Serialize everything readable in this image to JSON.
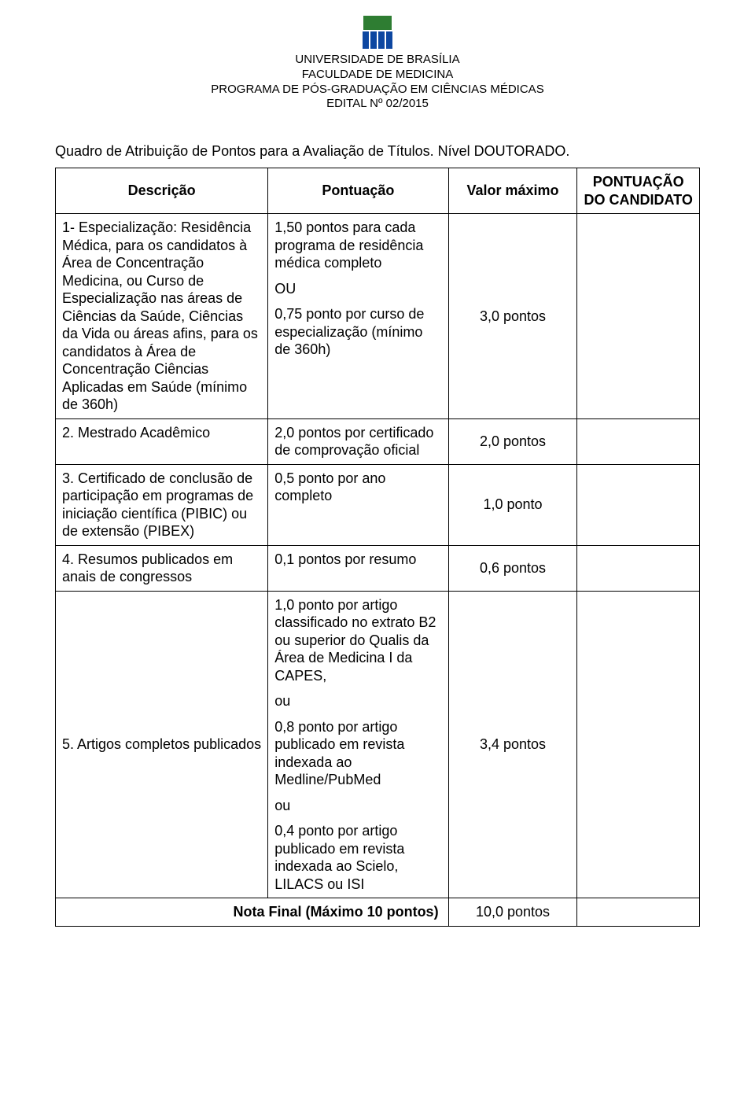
{
  "header": {
    "line1": "UNIVERSIDADE DE BRASÍLIA",
    "line2": "FACULDADE DE MEDICINA",
    "line3": "PROGRAMA DE PÓS-GRADUAÇÃO EM CIÊNCIAS MÉDICAS",
    "line4": "EDITAL Nº 02/2015"
  },
  "logo": {
    "top_color": "#2e7d32",
    "pillar_color": "#0d47a1"
  },
  "caption": "Quadro de Atribuição de Pontos para a Avaliação de Títulos. Nível DOUTORADO.",
  "columns": {
    "descricao": "Descrição",
    "pontuacao": "Pontuação",
    "valor_maximo": "Valor máximo",
    "pontuacao_candidato": "PONTUAÇÃO DO CANDIDATO"
  },
  "rows": [
    {
      "descricao": "1- Especialização: Residência Médica, para os candidatos à Área de Concentração Medicina, ou Curso de Especialização nas áreas de Ciências da Saúde, Ciências da Vida ou áreas afins, para os candidatos à Área de Concentração Ciências Aplicadas em Saúde (mínimo de 360h)",
      "pontuacao_blocks": [
        "1,50 pontos para cada programa de residência médica completo",
        "OU",
        "0,75 ponto por curso de especialização (mínimo de 360h)"
      ],
      "valor_maximo": "3,0 pontos"
    },
    {
      "descricao": "2. Mestrado Acadêmico",
      "pontuacao_blocks": [
        "2,0 pontos por certificado de comprovação oficial"
      ],
      "valor_maximo": "2,0 pontos"
    },
    {
      "descricao": "3. Certificado de conclusão de participação em programas de iniciação científica (PIBIC) ou de extensão (PIBEX)",
      "pontuacao_blocks": [
        "0,5 ponto por ano completo"
      ],
      "valor_maximo": "1,0 ponto"
    },
    {
      "descricao": "4. Resumos publicados em anais de congressos",
      "pontuacao_blocks": [
        "0,1 pontos por resumo"
      ],
      "valor_maximo": "0,6 pontos"
    },
    {
      "descricao": "5. Artigos completos publicados",
      "pontuacao_blocks": [
        "1,0 ponto por artigo classificado no extrato B2 ou superior do Qualis da Área de Medicina I da CAPES,",
        "ou",
        "0,8 ponto por artigo publicado em revista indexada ao Medline/PubMed",
        "ou",
        "0,4 ponto por artigo publicado em revista indexada ao Scielo, LILACS ou ISI"
      ],
      "valor_maximo": "3,4 pontos"
    }
  ],
  "nota_final": {
    "label": "Nota Final (Máximo 10 pontos)",
    "valor": "10,0 pontos"
  }
}
